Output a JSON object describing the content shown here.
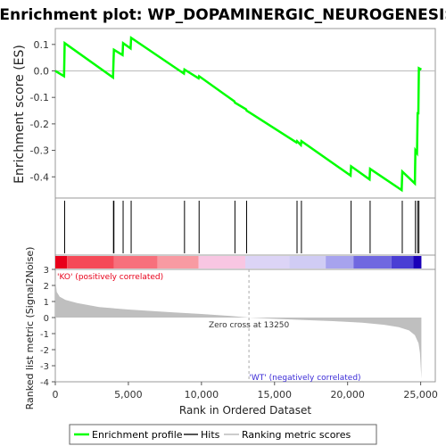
{
  "chart_data": {
    "type": "line",
    "title": "Enrichment plot: WP_DOPAMINERGIC_NEUROGENESIS",
    "es_panel": {
      "ylabel": "Enrichment score (ES)",
      "ylim": [
        -0.48,
        0.16
      ],
      "yticks": [
        0.1,
        0.0,
        -0.1,
        -0.2,
        -0.3,
        -0.4
      ],
      "ytick_labels": [
        "0.1",
        "0.0",
        "-0.1",
        "-0.2",
        "-0.3",
        "-0.4"
      ],
      "line_color": "#00ff00",
      "points": [
        [
          0,
          0.0
        ],
        [
          600,
          -0.02
        ],
        [
          640,
          0.105
        ],
        [
          3950,
          -0.025
        ],
        [
          3980,
          0.03
        ],
        [
          4010,
          0.08
        ],
        [
          4600,
          0.06
        ],
        [
          4640,
          0.105
        ],
        [
          5150,
          0.085
        ],
        [
          5190,
          0.125
        ],
        [
          8800,
          -0.01
        ],
        [
          8840,
          0.005
        ],
        [
          9800,
          -0.028
        ],
        [
          9840,
          -0.02
        ],
        [
          12250,
          -0.115
        ],
        [
          12290,
          -0.12
        ],
        [
          13050,
          -0.145
        ],
        [
          13090,
          -0.15
        ],
        [
          16500,
          -0.27
        ],
        [
          16540,
          -0.265
        ],
        [
          16800,
          -0.28
        ],
        [
          16840,
          -0.265
        ],
        [
          20200,
          -0.395
        ],
        [
          20240,
          -0.36
        ],
        [
          21500,
          -0.41
        ],
        [
          21540,
          -0.37
        ],
        [
          23700,
          -0.45
        ],
        [
          23740,
          -0.38
        ],
        [
          24600,
          -0.425
        ],
        [
          24640,
          -0.3
        ],
        [
          24750,
          -0.31
        ],
        [
          24790,
          -0.16
        ],
        [
          24840,
          -0.16
        ],
        [
          24880,
          0.01
        ],
        [
          25050,
          0.005
        ]
      ]
    },
    "hits": [
      640,
      3980,
      4010,
      4640,
      5190,
      8840,
      9840,
      12290,
      13090,
      16540,
      16840,
      20240,
      21540,
      23740,
      24640,
      24790,
      24880
    ],
    "color_bar": [
      {
        "from": 0,
        "to": 800,
        "color": "#e8001a"
      },
      {
        "from": 800,
        "to": 4000,
        "color": "#f54a58"
      },
      {
        "from": 4000,
        "to": 7000,
        "color": "#f7707c"
      },
      {
        "from": 7000,
        "to": 9800,
        "color": "#f89aa2"
      },
      {
        "from": 9800,
        "to": 13000,
        "color": "#f8c6e2"
      },
      {
        "from": 13000,
        "to": 16000,
        "color": "#dcd4f6"
      },
      {
        "from": 16000,
        "to": 18500,
        "color": "#d0ccf4"
      },
      {
        "from": 18500,
        "to": 20400,
        "color": "#a7a3ee"
      },
      {
        "from": 20400,
        "to": 23000,
        "color": "#7068e0"
      },
      {
        "from": 23000,
        "to": 24500,
        "color": "#4a3ed4"
      },
      {
        "from": 24500,
        "to": 25050,
        "color": "#1a00b8"
      }
    ],
    "metric_panel": {
      "ylabel": "Ranked list metric (Signal2Noise)",
      "ylim": [
        -4,
        3
      ],
      "yticks": [
        3,
        2,
        1,
        0,
        -1,
        -2,
        -3,
        -4
      ],
      "ytick_labels": [
        "3",
        "2",
        "1",
        "0",
        "-1",
        "-2",
        "-3",
        "-4"
      ],
      "fill_color": "#bfbfbf",
      "profile": [
        [
          0,
          2.4
        ],
        [
          100,
          1.6
        ],
        [
          300,
          1.3
        ],
        [
          700,
          1.1
        ],
        [
          1500,
          0.9
        ],
        [
          3000,
          0.65
        ],
        [
          5000,
          0.5
        ],
        [
          8000,
          0.33
        ],
        [
          10000,
          0.22
        ],
        [
          12000,
          0.1
        ],
        [
          13250,
          0.0
        ],
        [
          15000,
          -0.08
        ],
        [
          17000,
          -0.15
        ],
        [
          19000,
          -0.22
        ],
        [
          21000,
          -0.32
        ],
        [
          22500,
          -0.45
        ],
        [
          23500,
          -0.6
        ],
        [
          24200,
          -0.8
        ],
        [
          24600,
          -1.1
        ],
        [
          24850,
          -1.6
        ],
        [
          24950,
          -2.2
        ],
        [
          25050,
          -3.8
        ]
      ],
      "zero_cross_x": 13250,
      "zero_cross_label": "Zero cross at 13250",
      "pos_label": "'KO' (positively correlated)",
      "neg_label": "'WT' (negatively correlated)",
      "pos_color": "#e8001a",
      "neg_color": "#3a2ad6"
    },
    "x_axis": {
      "label": "Rank in Ordered Dataset",
      "xlim": [
        0,
        26000
      ],
      "ticks": [
        0,
        5000,
        10000,
        15000,
        20000,
        25000
      ],
      "tick_labels": [
        "0",
        "5,000",
        "10,000",
        "15,000",
        "20,000",
        "25,000"
      ]
    },
    "legend": {
      "placement": "bottom",
      "items": [
        {
          "label": "Enrichment profile",
          "color": "#00ff00"
        },
        {
          "label": "Hits",
          "color": "#555555"
        },
        {
          "label": "Ranking metric scores",
          "color": "#cccccc"
        }
      ]
    }
  }
}
